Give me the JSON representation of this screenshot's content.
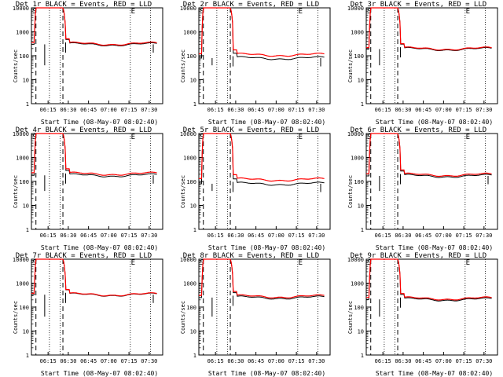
{
  "chart_data": [
    {
      "type": "line",
      "title": "Det 1r BLACK = Events, RED = LLD",
      "xlabel": "Start Time (08-May-07 08:02:40)",
      "ylabel": "Counts/sec",
      "yscale": "log",
      "ylim": [
        1,
        10000
      ],
      "xlim": [
        "06:02:40",
        "07:40:00"
      ],
      "x_tick_labels": [
        "06:15",
        "06:30",
        "06:45",
        "07:00",
        "07:15",
        "07:30"
      ],
      "y_tick_labels": [
        "1",
        "10",
        "100",
        "1000",
        "10000"
      ],
      "markers": [
        "S",
        "E"
      ],
      "baseline_events": 300,
      "baseline_lld": 320,
      "dip": true,
      "colors": {
        "events": "#000000",
        "lld": "#ff0000"
      }
    },
    {
      "type": "line",
      "title": "Det 2r BLACK = Events, RED = LLD",
      "xlabel": "Start Time (08-May-07 08:02:40)",
      "ylabel": "Counts/sec",
      "yscale": "log",
      "ylim": [
        1,
        10000
      ],
      "xlim": [
        "06:02:40",
        "07:40:00"
      ],
      "x_tick_labels": [
        "06:15",
        "06:30",
        "06:45",
        "07:00",
        "07:15",
        "07:30"
      ],
      "y_tick_labels": [
        "1",
        "10",
        "100",
        "1000",
        "10000"
      ],
      "markers": [
        "S",
        "E"
      ],
      "baseline_events": 80,
      "baseline_lld": 110,
      "dip": true,
      "colors": {
        "events": "#000000",
        "lld": "#ff0000"
      }
    },
    {
      "type": "line",
      "title": "Det 3r BLACK = Events, RED = LLD",
      "xlabel": "Start Time (08-May-07 08:02:40)",
      "ylabel": "Counts/sec",
      "yscale": "log",
      "ylim": [
        1,
        10000
      ],
      "xlim": [
        "06:02:40",
        "07:40:00"
      ],
      "x_tick_labels": [
        "06:15",
        "06:30",
        "06:45",
        "07:00",
        "07:15",
        "07:30"
      ],
      "y_tick_labels": [
        "1",
        "10",
        "100",
        "1000",
        "10000"
      ],
      "markers": [
        "S",
        "E"
      ],
      "baseline_events": 190,
      "baseline_lld": 200,
      "dip": false,
      "colors": {
        "events": "#000000",
        "lld": "#ff0000"
      }
    },
    {
      "type": "line",
      "title": "Det 4r BLACK = Events, RED = LLD",
      "xlabel": "Start Time (08-May-07 08:02:40)",
      "ylabel": "Counts/sec",
      "yscale": "log",
      "ylim": [
        1,
        10000
      ],
      "xlim": [
        "06:02:40",
        "07:40:00"
      ],
      "x_tick_labels": [
        "06:15",
        "06:30",
        "06:45",
        "07:00",
        "07:15",
        "07:30"
      ],
      "y_tick_labels": [
        "1",
        "10",
        "100",
        "1000",
        "10000"
      ],
      "markers": [
        "S",
        "E"
      ],
      "baseline_events": 180,
      "baseline_lld": 210,
      "dip": true,
      "colors": {
        "events": "#000000",
        "lld": "#ff0000"
      }
    },
    {
      "type": "line",
      "title": "Det 5r BLACK = Events, RED = LLD",
      "xlabel": "Start Time (08-May-07 08:02:40)",
      "ylabel": "Counts/sec",
      "yscale": "log",
      "ylim": [
        1,
        10000
      ],
      "xlim": [
        "06:02:40",
        "07:40:00"
      ],
      "x_tick_labels": [
        "06:15",
        "06:30",
        "06:45",
        "07:00",
        "07:15",
        "07:30"
      ],
      "y_tick_labels": [
        "1",
        "10",
        "100",
        "1000",
        "10000"
      ],
      "markers": [
        "S",
        "E"
      ],
      "baseline_events": 80,
      "baseline_lld": 120,
      "dip": true,
      "colors": {
        "events": "#000000",
        "lld": "#ff0000"
      }
    },
    {
      "type": "line",
      "title": "Det 6r BLACK = Events, RED = LLD",
      "xlabel": "Start Time (08-May-07 08:02:40)",
      "ylabel": "Counts/sec",
      "yscale": "log",
      "ylim": [
        1,
        10000
      ],
      "xlim": [
        "06:02:40",
        "07:40:00"
      ],
      "x_tick_labels": [
        "06:15",
        "06:30",
        "06:45",
        "07:00",
        "07:15",
        "07:30"
      ],
      "y_tick_labels": [
        "1",
        "10",
        "100",
        "1000",
        "10000"
      ],
      "markers": [
        "S",
        "E"
      ],
      "baseline_events": 170,
      "baseline_lld": 190,
      "dip": true,
      "colors": {
        "events": "#000000",
        "lld": "#ff0000"
      }
    },
    {
      "type": "line",
      "title": "Det 7r BLACK = Events, RED = LLD",
      "xlabel": "Start Time (08-May-07 08:02:40)",
      "ylabel": "Counts/sec",
      "yscale": "log",
      "ylim": [
        1,
        10000
      ],
      "xlim": [
        "06:02:40",
        "07:40:00"
      ],
      "x_tick_labels": [
        "06:15",
        "06:30",
        "06:45",
        "07:00",
        "07:15",
        "07:30"
      ],
      "y_tick_labels": [
        "1",
        "10",
        "100",
        "1000",
        "10000"
      ],
      "markers": [
        "S",
        "E"
      ],
      "baseline_events": 330,
      "baseline_lld": 340,
      "dip": true,
      "colors": {
        "events": "#000000",
        "lld": "#ff0000"
      }
    },
    {
      "type": "line",
      "title": "Det 8r BLACK = Events, RED = LLD",
      "xlabel": "Start Time (08-May-07 08:02:40)",
      "ylabel": "Counts/sec",
      "yscale": "log",
      "ylim": [
        1,
        10000
      ],
      "xlim": [
        "06:02:40",
        "07:40:00"
      ],
      "x_tick_labels": [
        "06:15",
        "06:30",
        "06:45",
        "07:00",
        "07:15",
        "07:30"
      ],
      "y_tick_labels": [
        "1",
        "10",
        "100",
        "1000",
        "10000"
      ],
      "markers": [
        "S",
        "E"
      ],
      "baseline_events": 250,
      "baseline_lld": 280,
      "dip": false,
      "colors": {
        "events": "#000000",
        "lld": "#ff0000"
      }
    },
    {
      "type": "line",
      "title": "Det 9r BLACK = Events, RED = LLD",
      "xlabel": "Start Time (08-May-07 08:02:40)",
      "ylabel": "Counts/sec",
      "yscale": "log",
      "ylim": [
        1,
        10000
      ],
      "xlim": [
        "06:02:40",
        "07:40:00"
      ],
      "x_tick_labels": [
        "06:15",
        "06:30",
        "06:45",
        "07:00",
        "07:15",
        "07:30"
      ],
      "y_tick_labels": [
        "1",
        "10",
        "100",
        "1000",
        "10000"
      ],
      "markers": [
        "S",
        "E"
      ],
      "baseline_events": 210,
      "baseline_lld": 230,
      "dip": false,
      "colors": {
        "events": "#000000",
        "lld": "#ff0000"
      }
    }
  ]
}
